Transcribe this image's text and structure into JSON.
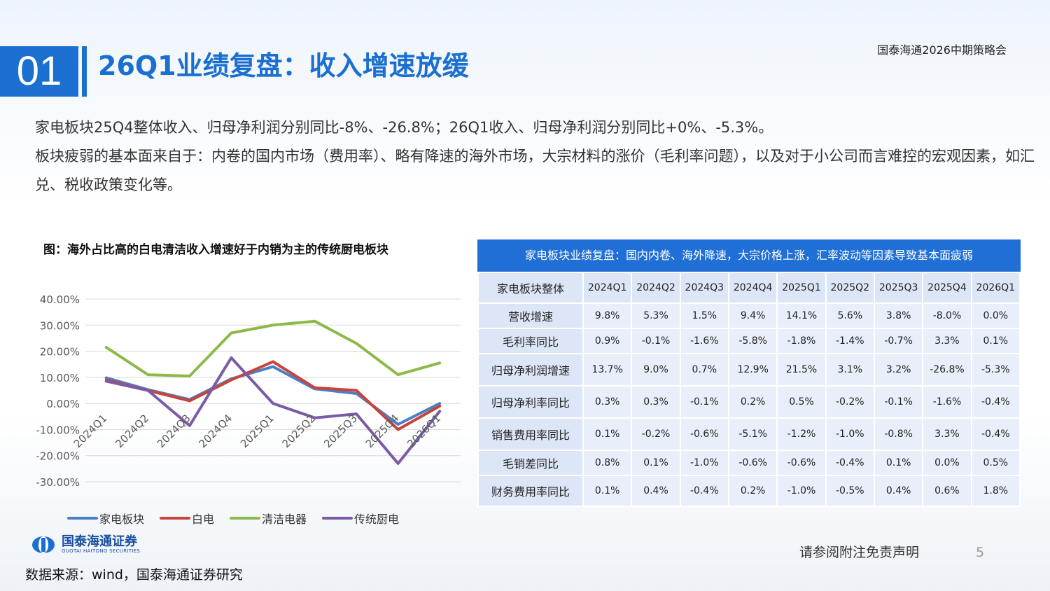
{
  "header": {
    "section_number": "01",
    "title": "26Q1业绩复盘：收入增速放缓",
    "event": "国泰海通2026中期策略会"
  },
  "summary": {
    "line1": "家电板块25Q4整体收入、归母净利润分别同比-8%、-26.8%；26Q1收入、归母净利润分别同比+0%、-5.3%。",
    "line2": "板块疲弱的基本面来自于：内卷的国内市场（费用率）、略有降速的海外市场，大宗材料的涨价（毛利率问题），以及对于小公司而言难控的宏观因素，如汇兑、税收政策变化等。"
  },
  "chart_data": {
    "type": "line",
    "title": "图：海外占比高的白电清洁收入增速好于内销为主的传统厨电板块",
    "x": [
      "2024Q1",
      "2024Q2",
      "2024Q3",
      "2024Q4",
      "2025Q1",
      "2025Q2",
      "2025Q3",
      "2025Q4",
      "2026Q1"
    ],
    "y_ticks": [
      "40.00%",
      "30.00%",
      "20.00%",
      "10.00%",
      "0.00%",
      "-10.00%",
      "-20.00%",
      "-30.00%"
    ],
    "ylim": [
      -30,
      40
    ],
    "grid": true,
    "legend_position": "bottom",
    "series": [
      {
        "name": "家电板块",
        "color": "#4a7fc8",
        "values": [
          9.8,
          5.3,
          1.5,
          9.4,
          14.1,
          5.6,
          3.8,
          -8.0,
          0.0
        ]
      },
      {
        "name": "白电",
        "color": "#c8443a",
        "values": [
          9.0,
          5.0,
          1.0,
          9.0,
          16.0,
          6.0,
          5.0,
          -10.0,
          -1.0
        ]
      },
      {
        "name": "清洁电器",
        "color": "#8fb84a",
        "values": [
          21.5,
          11.0,
          10.5,
          27.0,
          30.0,
          31.5,
          23.0,
          11.0,
          15.5
        ]
      },
      {
        "name": "传统厨电",
        "color": "#7b5ba6",
        "values": [
          8.5,
          5.0,
          -8.5,
          17.5,
          0.0,
          -5.5,
          -4.0,
          -23.0,
          -3.0
        ]
      }
    ]
  },
  "table": {
    "header": "家电板块业绩复盘：国内内卷、海外降速，大宗价格上涨，汇率波动等因素导致基本面疲弱",
    "columns": [
      "家电板块整体",
      "2024Q1",
      "2024Q2",
      "2024Q3",
      "2024Q4",
      "2025Q1",
      "2025Q2",
      "2025Q3",
      "2025Q4",
      "2026Q1"
    ],
    "rows": [
      {
        "label": "营收增速",
        "cells": [
          "9.8%",
          "5.3%",
          "1.5%",
          "9.4%",
          "14.1%",
          "5.6%",
          "3.8%",
          "-8.0%",
          "0.0%"
        ]
      },
      {
        "label": "毛利率同比",
        "cells": [
          "0.9%",
          "-0.1%",
          "-1.6%",
          "-5.8%",
          "-1.8%",
          "-1.4%",
          "-0.7%",
          "3.3%",
          "0.1%"
        ]
      },
      {
        "label": "归母净利润增速",
        "cells": [
          "13.7%",
          "9.0%",
          "0.7%",
          "12.9%",
          "21.5%",
          "3.1%",
          "3.2%",
          "-26.8%",
          "-5.3%"
        ]
      },
      {
        "label": "归母净利率同比",
        "cells": [
          "0.3%",
          "0.3%",
          "-0.1%",
          "0.2%",
          "0.5%",
          "-0.2%",
          "-0.1%",
          "-1.6%",
          "-0.4%"
        ]
      },
      {
        "label": "销售费用率同比",
        "cells": [
          "0.1%",
          "-0.2%",
          "-0.6%",
          "-5.1%",
          "-1.2%",
          "-1.0%",
          "-0.8%",
          "3.3%",
          "-0.4%"
        ]
      },
      {
        "label": "毛销差同比",
        "cells": [
          "0.8%",
          "0.1%",
          "-1.0%",
          "-0.6%",
          "-0.6%",
          "-0.4%",
          "0.1%",
          "0.0%",
          "0.5%"
        ]
      },
      {
        "label": "财务费用率同比",
        "cells": [
          "0.1%",
          "0.4%",
          "-0.4%",
          "0.2%",
          "-1.0%",
          "-0.5%",
          "0.4%",
          "0.6%",
          "1.8%"
        ]
      }
    ]
  },
  "footer": {
    "logo_cn": "国泰海通证券",
    "logo_en": "GUOTAI HAITONG SECURITIES",
    "source": "数据来源：wind，国泰海通证券研究",
    "disclaimer": "请参阅附注免责声明",
    "page": "5"
  }
}
